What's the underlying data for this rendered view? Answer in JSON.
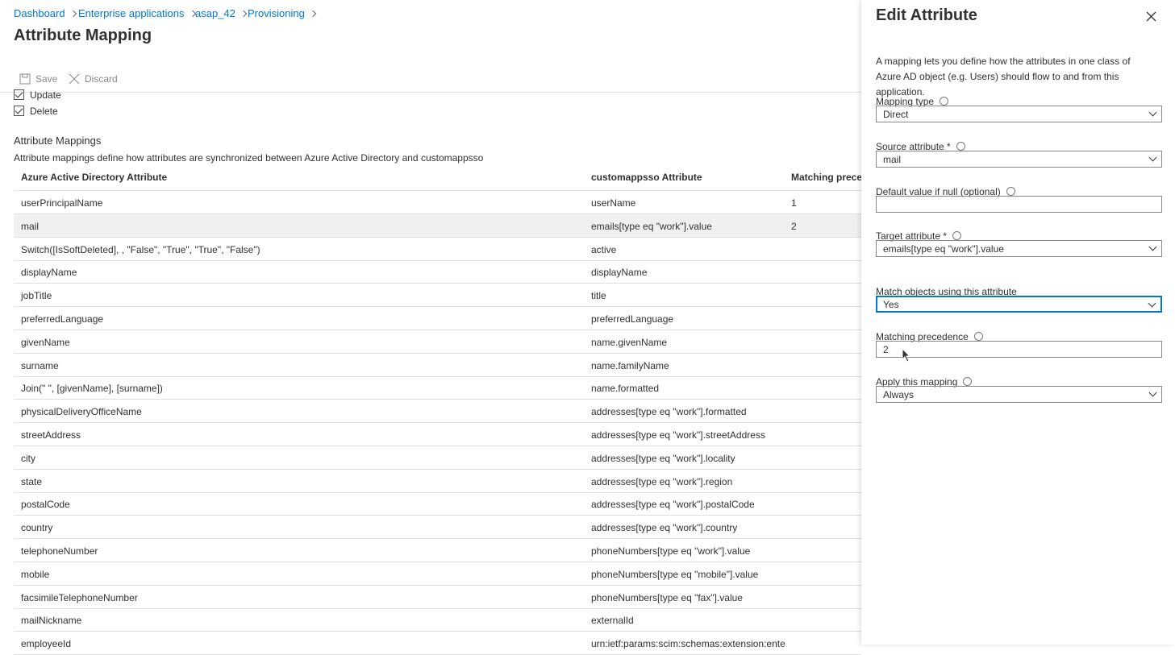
{
  "breadcrumb": [
    "Dashboard",
    "Enterprise applications",
    "asap_42",
    "Provisioning"
  ],
  "header": {
    "title": "Attribute Mapping"
  },
  "toolbar": [
    "Save",
    "Discard"
  ],
  "checkboxes": [
    "Update",
    "Delete"
  ],
  "section": {
    "title": "Attribute Mappings",
    "description": "Attribute mappings define how attributes are synchronized between Azure Active Directory and customappsso"
  },
  "table": {
    "columns": [
      "Azure Active Directory Attribute",
      "customappsso Attribute",
      "Matching preced"
    ],
    "rows": [
      [
        "userPrincipalName",
        "userName",
        "1"
      ],
      [
        "mail",
        "emails[type eq \"work\"].value",
        "2"
      ],
      [
        "Switch([IsSoftDeleted], , \"False\", \"True\", \"True\", \"False\")",
        "active"
      ],
      [
        "displayName",
        "displayName"
      ],
      [
        "jobTitle",
        "title"
      ],
      [
        "preferredLanguage",
        "preferredLanguage"
      ],
      [
        "givenName",
        "name.givenName"
      ],
      [
        "surname",
        "name.familyName"
      ],
      [
        "Join(\" \", [givenName], [surname])",
        "name.formatted"
      ],
      [
        "physicalDeliveryOfficeName",
        "addresses[type eq \"work\"].formatted"
      ],
      [
        "streetAddress",
        "addresses[type eq \"work\"].streetAddress"
      ],
      [
        "city",
        "addresses[type eq \"work\"].locality"
      ],
      [
        "state",
        "addresses[type eq \"work\"].region"
      ],
      [
        "postalCode",
        "addresses[type eq \"work\"].postalCode"
      ],
      [
        "country",
        "addresses[type eq \"work\"].country"
      ],
      [
        "telephoneNumber",
        "phoneNumbers[type eq \"work\"].value"
      ],
      [
        "mobile",
        "phoneNumbers[type eq \"mobile\"].value"
      ],
      [
        "facsimileTelephoneNumber",
        "phoneNumbers[type eq \"fax\"].value"
      ],
      [
        "mailNickname",
        "externalId"
      ],
      [
        "employeeId",
        "urn:ietf:params:scim:schemas:extension:ente"
      ]
    ]
  },
  "panel": {
    "title": "Edit Attribute",
    "description": "A mapping lets you define how the attributes in one class of Azure AD object (e.g. Users) should flow to and from this application.",
    "fields": [
      {
        "label": "Mapping type",
        "value": "Direct"
      },
      {
        "label": "Source attribute *",
        "value": "mail"
      },
      {
        "label": "Default value if null (optional)"
      },
      {
        "label": "Target attribute *",
        "value": "emails[type eq \"work\"].value"
      },
      {
        "label": "Match objects using this attribute",
        "value": "Yes"
      },
      {
        "label": "Matching precedence",
        "value": "2"
      },
      {
        "label": "Apply this mapping",
        "value": "Always"
      }
    ]
  }
}
